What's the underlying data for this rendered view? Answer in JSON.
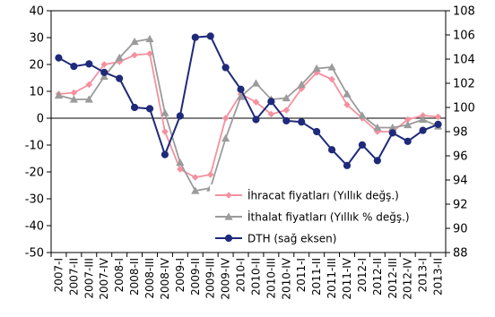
{
  "chart_data": {
    "type": "line",
    "categories": [
      "2007-I",
      "2007-II",
      "2007-III",
      "2007-IV",
      "2008-I",
      "2008-II",
      "2008-III",
      "2008-IV",
      "2009-I",
      "2009-II",
      "2009-III",
      "2009-IV",
      "2010-I",
      "2010-II",
      "2010-III",
      "2010-IV",
      "2011-I",
      "2011-II",
      "2011-III",
      "2011-IV",
      "2012-I",
      "2012-II",
      "2012-III",
      "2012-IV",
      "2013-I",
      "2013-II"
    ],
    "series": [
      {
        "name": "İhracat fiyatları (Yıllık değş.)",
        "axis": "left",
        "color": "#f4919f",
        "marker": "diamond",
        "values": [
          9,
          9.5,
          12.5,
          20,
          21,
          23.5,
          24,
          -5,
          -19,
          -22,
          -21,
          0,
          9,
          6,
          1.5,
          3,
          11,
          17,
          14.5,
          5,
          0,
          -5,
          -5,
          -0.5,
          1,
          0.5
        ]
      },
      {
        "name": "İthalat fiyatları (Yıllık % değş.)",
        "axis": "left",
        "color": "#9b9b9b",
        "marker": "triangle",
        "values": [
          8.5,
          7,
          7,
          15.5,
          22.5,
          28.5,
          29.5,
          2,
          -16.5,
          -27,
          -26,
          -7.5,
          8,
          13,
          7,
          7.5,
          12.5,
          18.5,
          19,
          9,
          1,
          -3.5,
          -3.5,
          -2.5,
          -0.5,
          -3
        ]
      },
      {
        "name": "DTH (sağ eksen)",
        "axis": "right",
        "color": "#1f2a7a",
        "marker": "circle",
        "values": [
          104.1,
          103.4,
          103.6,
          102.9,
          102.4,
          100.0,
          99.9,
          96.1,
          99.3,
          105.8,
          105.9,
          103.3,
          101.5,
          99.0,
          100.5,
          98.9,
          98.8,
          98.0,
          96.5,
          95.2,
          96.9,
          95.6,
          97.9,
          97.2,
          98.1,
          98.6
        ]
      }
    ],
    "y_left": {
      "min": -50,
      "max": 40,
      "step": 10,
      "ticks": [
        "-50",
        "-40",
        "-30",
        "-20",
        "-10",
        "0",
        "10",
        "20",
        "30",
        "40"
      ]
    },
    "y_right": {
      "min": 88,
      "max": 108,
      "step": 2,
      "ticks": [
        "88",
        "90",
        "92",
        "94",
        "96",
        "98",
        "100",
        "102",
        "104",
        "106",
        "108"
      ]
    },
    "legend_position": "bottom-right",
    "grid": false
  }
}
